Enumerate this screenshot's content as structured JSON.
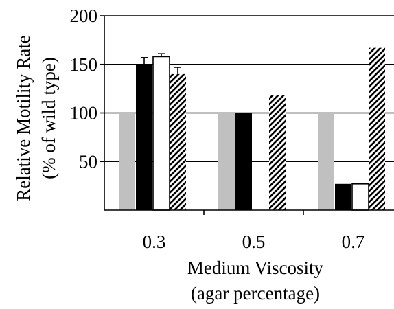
{
  "chart_data": {
    "type": "bar",
    "title": "",
    "xlabel_line1": "Medium Viscosity",
    "xlabel_line2": "(agar percentage)",
    "ylabel_line1": "Relative Motility Rate",
    "ylabel_line2": "(% of wild type)",
    "categories": [
      "0.3",
      "0.5",
      "0.7"
    ],
    "ylim": [
      0,
      200
    ],
    "yticks": [
      "50",
      "100",
      "150",
      "200"
    ],
    "grid": true,
    "legend": "none",
    "series": [
      {
        "values": [
          100,
          100,
          100
        ],
        "errors": [
          0,
          0,
          0
        ],
        "fill": "#c0c0c0",
        "pattern": "solid"
      },
      {
        "values": [
          150,
          100,
          27
        ],
        "errors": [
          7,
          0,
          0
        ],
        "fill": "#000000",
        "pattern": "solid"
      },
      {
        "values": [
          158,
          0,
          27
        ],
        "errors": [
          3,
          0,
          0
        ],
        "fill": "#ffffff",
        "pattern": "solid"
      },
      {
        "values": [
          140,
          118,
          167
        ],
        "errors": [
          7,
          0,
          0
        ],
        "fill": "#ffffff",
        "pattern": "diagonal-hatch"
      }
    ]
  }
}
